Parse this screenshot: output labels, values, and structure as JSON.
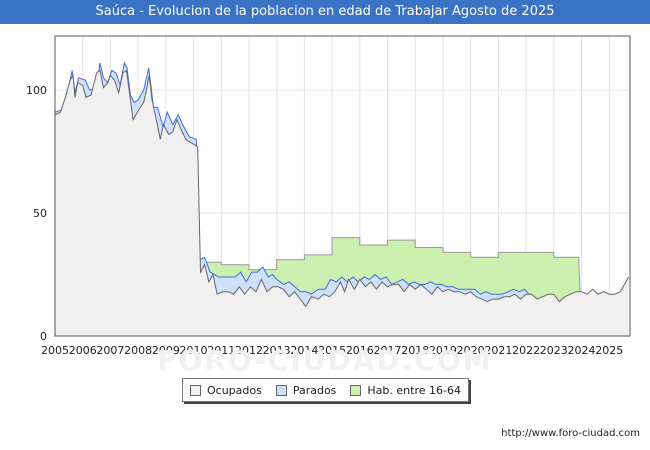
{
  "header": {
    "title": "Saúca - Evolucion de la poblacion en edad de Trabajar Agosto de 2025"
  },
  "watermark": "FORO-CIUDAD.COM",
  "footer": {
    "source": "http://www.foro-ciudad.com"
  },
  "legend": [
    {
      "label": "Ocupados",
      "color": "#f0f0f0"
    },
    {
      "label": "Parados",
      "color": "#cfe0fb"
    },
    {
      "label": "Hab. entre 16-64",
      "color": "#ccf0b0"
    }
  ],
  "chart_data": {
    "type": "area",
    "title": "Saúca - Evolucion de la poblacion en edad de Trabajar Agosto de 2025",
    "xlabel": "",
    "ylabel": "",
    "xlim": [
      2005,
      2025.75
    ],
    "ylim": [
      0,
      122
    ],
    "x_ticks": [
      "2005",
      "2006",
      "2007",
      "2008",
      "2009",
      "2010",
      "2011",
      "2012",
      "2013",
      "2014",
      "2015",
      "2016",
      "2017",
      "2018",
      "2019",
      "2020",
      "2021",
      "2022",
      "2023",
      "2024",
      "2025"
    ],
    "y_ticks": [
      0,
      50,
      100
    ],
    "grid": true,
    "series": [
      {
        "name": "Hab. entre 16-64",
        "color": "#ccf0b0",
        "line_color": "#999999",
        "points": [
          [
            2010.3,
            30
          ],
          [
            2011.0,
            30
          ],
          [
            2011.0,
            29
          ],
          [
            2012.0,
            29
          ],
          [
            2012.0,
            27
          ],
          [
            2013.0,
            27
          ],
          [
            2013.0,
            31
          ],
          [
            2014.0,
            31
          ],
          [
            2014.0,
            33
          ],
          [
            2015.0,
            33
          ],
          [
            2015.0,
            40
          ],
          [
            2016.0,
            40
          ],
          [
            2016.0,
            37
          ],
          [
            2017.0,
            37
          ],
          [
            2017.0,
            39
          ],
          [
            2018.0,
            39
          ],
          [
            2018.0,
            36
          ],
          [
            2019.0,
            36
          ],
          [
            2019.0,
            34
          ],
          [
            2020.0,
            34
          ],
          [
            2020.0,
            32
          ],
          [
            2021.0,
            32
          ],
          [
            2021.0,
            34
          ],
          [
            2023.0,
            34
          ],
          [
            2023.0,
            32
          ],
          [
            2023.9,
            32
          ],
          [
            2023.95,
            17
          ]
        ]
      },
      {
        "name": "Parados",
        "color": "#cfe0fb",
        "line_color": "#3a6fd8",
        "points": [
          [
            2005.0,
            91
          ],
          [
            2005.25,
            92
          ],
          [
            2005.5,
            102
          ],
          [
            2005.62,
            108
          ],
          [
            2005.72,
            99
          ],
          [
            2005.85,
            105
          ],
          [
            2006.1,
            104
          ],
          [
            2006.25,
            100
          ],
          [
            2006.5,
            101
          ],
          [
            2006.62,
            111
          ],
          [
            2006.75,
            105
          ],
          [
            2006.9,
            103
          ],
          [
            2007.05,
            108
          ],
          [
            2007.2,
            107
          ],
          [
            2007.35,
            102
          ],
          [
            2007.5,
            111
          ],
          [
            2007.6,
            109
          ],
          [
            2007.72,
            98
          ],
          [
            2007.85,
            95
          ],
          [
            2008.0,
            96
          ],
          [
            2008.2,
            100
          ],
          [
            2008.38,
            109
          ],
          [
            2008.45,
            103
          ],
          [
            2008.55,
            93
          ],
          [
            2008.7,
            93
          ],
          [
            2008.9,
            85
          ],
          [
            2009.05,
            91
          ],
          [
            2009.25,
            86
          ],
          [
            2009.45,
            90
          ],
          [
            2009.6,
            86
          ],
          [
            2009.85,
            81
          ],
          [
            2010.1,
            80
          ],
          [
            2010.22,
            31
          ],
          [
            2010.4,
            32
          ],
          [
            2010.6,
            26
          ],
          [
            2010.9,
            24
          ],
          [
            2011.2,
            24
          ],
          [
            2011.5,
            24
          ],
          [
            2011.7,
            26
          ],
          [
            2011.9,
            22
          ],
          [
            2012.1,
            26
          ],
          [
            2012.3,
            26
          ],
          [
            2012.5,
            28
          ],
          [
            2012.7,
            24
          ],
          [
            2012.85,
            25
          ],
          [
            2013.0,
            23
          ],
          [
            2013.25,
            21
          ],
          [
            2013.45,
            22
          ],
          [
            2013.65,
            20
          ],
          [
            2013.85,
            18
          ],
          [
            2014.05,
            18
          ],
          [
            2014.25,
            17
          ],
          [
            2014.5,
            19
          ],
          [
            2014.75,
            19
          ],
          [
            2014.95,
            23
          ],
          [
            2015.15,
            22
          ],
          [
            2015.35,
            24
          ],
          [
            2015.55,
            22
          ],
          [
            2015.75,
            24
          ],
          [
            2015.95,
            22
          ],
          [
            2016.15,
            24
          ],
          [
            2016.35,
            23
          ],
          [
            2016.55,
            25
          ],
          [
            2016.75,
            23
          ],
          [
            2016.95,
            24
          ],
          [
            2017.15,
            21
          ],
          [
            2017.35,
            22
          ],
          [
            2017.55,
            23
          ],
          [
            2017.75,
            21
          ],
          [
            2017.95,
            22
          ],
          [
            2018.15,
            21
          ],
          [
            2018.35,
            21
          ],
          [
            2018.55,
            22
          ],
          [
            2018.75,
            21
          ],
          [
            2018.95,
            21
          ],
          [
            2019.15,
            20
          ],
          [
            2019.35,
            20
          ],
          [
            2019.55,
            19
          ],
          [
            2019.75,
            19
          ],
          [
            2019.95,
            19
          ],
          [
            2020.15,
            19
          ],
          [
            2020.35,
            17
          ],
          [
            2020.55,
            18
          ],
          [
            2020.75,
            17
          ],
          [
            2020.95,
            17
          ],
          [
            2021.15,
            17
          ],
          [
            2021.35,
            18
          ],
          [
            2021.55,
            19
          ],
          [
            2021.75,
            18
          ],
          [
            2021.95,
            19
          ],
          [
            2022.1,
            17
          ]
        ]
      },
      {
        "name": "Ocupados",
        "color": "#f0f0f0",
        "line_color": "#666666",
        "points": [
          [
            2005.0,
            90
          ],
          [
            2005.2,
            91
          ],
          [
            2005.4,
            98
          ],
          [
            2005.55,
            104
          ],
          [
            2005.65,
            106
          ],
          [
            2005.72,
            97
          ],
          [
            2005.82,
            103
          ],
          [
            2006.0,
            102
          ],
          [
            2006.12,
            97
          ],
          [
            2006.3,
            98
          ],
          [
            2006.5,
            107
          ],
          [
            2006.62,
            108
          ],
          [
            2006.75,
            101
          ],
          [
            2006.9,
            103
          ],
          [
            2007.0,
            106
          ],
          [
            2007.15,
            104
          ],
          [
            2007.3,
            99
          ],
          [
            2007.45,
            107
          ],
          [
            2007.58,
            108
          ],
          [
            2007.72,
            96
          ],
          [
            2007.82,
            88
          ],
          [
            2007.92,
            90
          ],
          [
            2008.08,
            93
          ],
          [
            2008.2,
            95
          ],
          [
            2008.3,
            100
          ],
          [
            2008.4,
            106
          ],
          [
            2008.5,
            96
          ],
          [
            2008.62,
            90
          ],
          [
            2008.8,
            80
          ],
          [
            2008.92,
            86
          ],
          [
            2009.1,
            82
          ],
          [
            2009.25,
            83
          ],
          [
            2009.4,
            88
          ],
          [
            2009.55,
            84
          ],
          [
            2009.72,
            80
          ],
          [
            2009.85,
            79
          ],
          [
            2010.0,
            78
          ],
          [
            2010.15,
            77
          ],
          [
            2010.25,
            26
          ],
          [
            2010.4,
            29
          ],
          [
            2010.55,
            22
          ],
          [
            2010.7,
            25
          ],
          [
            2010.85,
            17
          ],
          [
            2011.05,
            18
          ],
          [
            2011.25,
            18
          ],
          [
            2011.45,
            17
          ],
          [
            2011.65,
            20
          ],
          [
            2011.85,
            17
          ],
          [
            2012.05,
            20
          ],
          [
            2012.25,
            18
          ],
          [
            2012.45,
            23
          ],
          [
            2012.65,
            18
          ],
          [
            2012.85,
            20
          ],
          [
            2013.05,
            20
          ],
          [
            2013.25,
            19
          ],
          [
            2013.45,
            16
          ],
          [
            2013.65,
            18
          ],
          [
            2013.85,
            15
          ],
          [
            2014.05,
            12
          ],
          [
            2014.25,
            16
          ],
          [
            2014.5,
            15
          ],
          [
            2014.7,
            17
          ],
          [
            2014.9,
            16
          ],
          [
            2015.1,
            18
          ],
          [
            2015.3,
            22
          ],
          [
            2015.45,
            18
          ],
          [
            2015.6,
            23
          ],
          [
            2015.8,
            19
          ],
          [
            2016.0,
            23
          ],
          [
            2016.2,
            20
          ],
          [
            2016.4,
            22
          ],
          [
            2016.6,
            19
          ],
          [
            2016.8,
            22
          ],
          [
            2017.0,
            20
          ],
          [
            2017.2,
            21
          ],
          [
            2017.4,
            21
          ],
          [
            2017.6,
            18
          ],
          [
            2017.8,
            21
          ],
          [
            2018.0,
            19
          ],
          [
            2018.2,
            21
          ],
          [
            2018.4,
            19
          ],
          [
            2018.6,
            17
          ],
          [
            2018.8,
            20
          ],
          [
            2019.0,
            18
          ],
          [
            2019.2,
            19
          ],
          [
            2019.4,
            18
          ],
          [
            2019.6,
            18
          ],
          [
            2019.8,
            17
          ],
          [
            2020.0,
            18
          ],
          [
            2020.2,
            16
          ],
          [
            2020.4,
            15
          ],
          [
            2020.6,
            14
          ],
          [
            2020.8,
            15
          ],
          [
            2021.0,
            15
          ],
          [
            2021.2,
            16
          ],
          [
            2021.4,
            16
          ],
          [
            2021.6,
            17
          ],
          [
            2021.8,
            15
          ],
          [
            2022.0,
            17
          ],
          [
            2022.2,
            17
          ],
          [
            2022.4,
            15
          ],
          [
            2022.6,
            16
          ],
          [
            2022.8,
            17
          ],
          [
            2023.0,
            17
          ],
          [
            2023.2,
            14
          ],
          [
            2023.4,
            16
          ],
          [
            2023.6,
            17
          ],
          [
            2023.8,
            18
          ],
          [
            2024.0,
            18
          ],
          [
            2024.2,
            17
          ],
          [
            2024.4,
            19
          ],
          [
            2024.6,
            17
          ],
          [
            2024.8,
            18
          ],
          [
            2025.0,
            17
          ],
          [
            2025.2,
            17
          ],
          [
            2025.4,
            18
          ],
          [
            2025.55,
            21
          ],
          [
            2025.7,
            24
          ]
        ]
      }
    ]
  }
}
